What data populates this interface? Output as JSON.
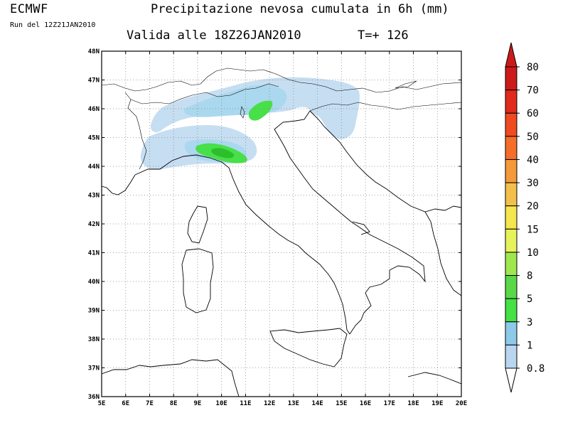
{
  "header": {
    "brand": "ECMWF",
    "run": "Run del 12Z21JAN2010",
    "title": "Precipitazione nevosa cumulata in 6h (mm)",
    "valid": "Valida alle 18Z26JAN2010",
    "tstep": "T=+ 126"
  },
  "map": {
    "lon_range": [
      5,
      20
    ],
    "lat_range": [
      36,
      48
    ],
    "lon_labels": [
      "5E",
      "6E",
      "7E",
      "8E",
      "9E",
      "10E",
      "11E",
      "12E",
      "13E",
      "14E",
      "15E",
      "16E",
      "17E",
      "18E",
      "19E",
      "20E"
    ],
    "lat_labels": [
      "36N",
      "37N",
      "38N",
      "39N",
      "40N",
      "41N",
      "42N",
      "43N",
      "44N",
      "45N",
      "46N",
      "47N",
      "48N"
    ],
    "grid": "dotted"
  },
  "colorbar": {
    "levels": [
      "0.8",
      "1",
      "3",
      "5",
      "8",
      "10",
      "15",
      "20",
      "30",
      "40",
      "50",
      "60",
      "70",
      "80"
    ],
    "colors": [
      "#f0f8f0",
      "#b8d6f0",
      "#8ccae8",
      "#44e044",
      "#5ad84a",
      "#9ee84e",
      "#e6f25a",
      "#f4e64c",
      "#f2c04a",
      "#f49a3a",
      "#f46e2a",
      "#f04a22",
      "#e02a1c",
      "#cc1a1a"
    ]
  },
  "precip_colors": {
    "light": "#c2dcf2",
    "medium": "#a6d6ee",
    "high": "#46e046",
    "peak": "#2ac22a"
  }
}
